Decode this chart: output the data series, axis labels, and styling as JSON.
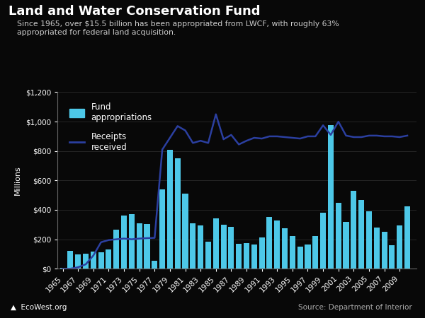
{
  "title": "Land and Water Conservation Fund",
  "subtitle": "Since 1965, over $15.5 billion has been appropriated from LWCF, with roughly 63%\nappropriated for federal land acquisition.",
  "ylabel": "Millions",
  "background_color": "#080808",
  "text_color": "#ffffff",
  "bar_color": "#4dc8e8",
  "line_color": "#2b3fa0",
  "source_text": "Source: Department of Interior",
  "footer_text": "EcoWest.org",
  "years": [
    1965,
    1966,
    1967,
    1968,
    1969,
    1970,
    1971,
    1972,
    1973,
    1974,
    1975,
    1976,
    1977,
    1978,
    1979,
    1980,
    1981,
    1982,
    1983,
    1984,
    1985,
    1986,
    1987,
    1988,
    1989,
    1990,
    1991,
    1992,
    1993,
    1994,
    1995,
    1996,
    1997,
    1998,
    1999,
    2000,
    2001,
    2002,
    2003,
    2004,
    2005,
    2006,
    2007,
    2008,
    2009,
    2010
  ],
  "appropriations": [
    5,
    120,
    95,
    100,
    115,
    110,
    130,
    265,
    360,
    370,
    310,
    305,
    55,
    540,
    810,
    750,
    510,
    310,
    295,
    185,
    340,
    300,
    285,
    170,
    175,
    165,
    215,
    350,
    330,
    275,
    220,
    150,
    165,
    220,
    380,
    975,
    450,
    320,
    530,
    465,
    390,
    280,
    250,
    160,
    295,
    425
  ],
  "receipts": [
    0,
    0,
    10,
    30,
    90,
    180,
    195,
    200,
    205,
    200,
    205,
    208,
    210,
    810,
    890,
    970,
    940,
    855,
    870,
    855,
    1050,
    880,
    910,
    845,
    870,
    890,
    885,
    900,
    900,
    895,
    890,
    885,
    900,
    900,
    975,
    910,
    1000,
    905,
    895,
    895,
    905,
    905,
    900,
    900,
    895,
    905
  ],
  "ylim": [
    0,
    1200
  ],
  "yticks": [
    0,
    200,
    400,
    600,
    800,
    1000,
    1200
  ],
  "ytick_labels": [
    "$0",
    "$200",
    "$400",
    "$600",
    "$800",
    "$1,000",
    "$1,200"
  ],
  "legend_bar_label": "Fund\nappropriations",
  "legend_line_label": "Receipts\nreceived"
}
